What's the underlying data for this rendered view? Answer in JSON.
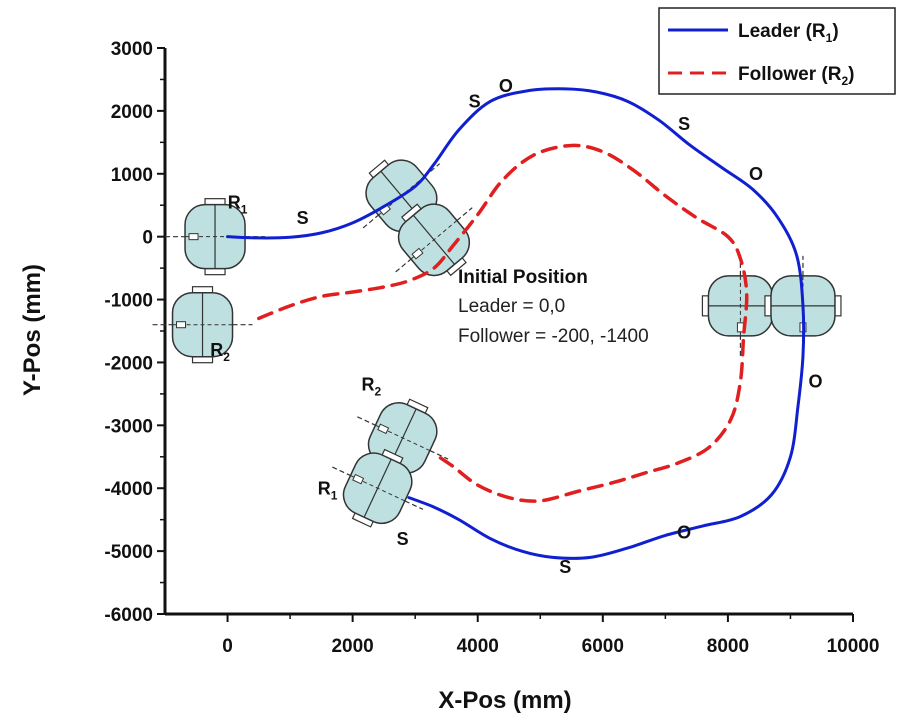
{
  "chart_data": {
    "type": "line",
    "xlabel": "X-Pos (mm)",
    "ylabel": "Y-Pos (mm)",
    "xlim": [
      -1000,
      10000
    ],
    "ylim": [
      -6000,
      3000
    ],
    "x_ticks": [
      0,
      2000,
      4000,
      6000,
      8000,
      10000
    ],
    "y_ticks": [
      3000,
      2000,
      1000,
      0,
      -1000,
      -2000,
      -3000,
      -4000,
      -5000,
      -6000
    ],
    "grid": false,
    "legend_position": "top-right",
    "series": [
      {
        "name": "Leader (R1)",
        "legend_main": "Leader (R",
        "legend_sub": "1",
        "legend_close": ")",
        "color": "#1020d0",
        "style": "solid",
        "points": [
          [
            0,
            0
          ],
          [
            500,
            -20
          ],
          [
            1000,
            -10
          ],
          [
            1500,
            60
          ],
          [
            2000,
            220
          ],
          [
            2500,
            480
          ],
          [
            3000,
            800
          ],
          [
            3300,
            1150
          ],
          [
            3700,
            1700
          ],
          [
            4200,
            2150
          ],
          [
            4800,
            2320
          ],
          [
            5400,
            2350
          ],
          [
            5900,
            2300
          ],
          [
            6400,
            2150
          ],
          [
            6900,
            1850
          ],
          [
            7400,
            1450
          ],
          [
            7900,
            1100
          ],
          [
            8400,
            750
          ],
          [
            8800,
            300
          ],
          [
            9100,
            -300
          ],
          [
            9200,
            -1100
          ],
          [
            9200,
            -1900
          ],
          [
            9120,
            -2700
          ],
          [
            9000,
            -3500
          ],
          [
            8700,
            -4100
          ],
          [
            8200,
            -4450
          ],
          [
            7600,
            -4600
          ],
          [
            7000,
            -4750
          ],
          [
            6400,
            -4950
          ],
          [
            5800,
            -5100
          ],
          [
            5200,
            -5100
          ],
          [
            4700,
            -5000
          ],
          [
            4200,
            -4800
          ],
          [
            3700,
            -4500
          ],
          [
            3300,
            -4300
          ],
          [
            2900,
            -4150
          ]
        ]
      },
      {
        "name": "Follower (R2)",
        "legend_main": "Follower (R",
        "legend_sub": "2",
        "legend_close": ")",
        "color": "#e02020",
        "style": "dashed",
        "points": [
          [
            500,
            -1300
          ],
          [
            1000,
            -1100
          ],
          [
            1500,
            -950
          ],
          [
            2000,
            -880
          ],
          [
            2500,
            -800
          ],
          [
            2900,
            -700
          ],
          [
            3300,
            -500
          ],
          [
            3600,
            -150
          ],
          [
            4000,
            350
          ],
          [
            4400,
            900
          ],
          [
            4900,
            1300
          ],
          [
            5500,
            1450
          ],
          [
            6000,
            1350
          ],
          [
            6500,
            1050
          ],
          [
            7000,
            650
          ],
          [
            7500,
            300
          ],
          [
            8000,
            0
          ],
          [
            8200,
            -350
          ],
          [
            8300,
            -900
          ],
          [
            8250,
            -1600
          ],
          [
            8200,
            -2300
          ],
          [
            8050,
            -2900
          ],
          [
            7700,
            -3350
          ],
          [
            7200,
            -3600
          ],
          [
            6700,
            -3750
          ],
          [
            6200,
            -3900
          ],
          [
            5600,
            -4050
          ],
          [
            5000,
            -4200
          ],
          [
            4500,
            -4150
          ],
          [
            4000,
            -3950
          ],
          [
            3600,
            -3650
          ],
          [
            3300,
            -3450
          ]
        ]
      }
    ],
    "annotations": [
      {
        "text": "S",
        "x": 1200,
        "y": 200
      },
      {
        "text": "S",
        "x": 3950,
        "y": 2050
      },
      {
        "text": "O",
        "x": 4450,
        "y": 2300
      },
      {
        "text": "S",
        "x": 7300,
        "y": 1700
      },
      {
        "text": "O",
        "x": 8450,
        "y": 900
      },
      {
        "text": "O",
        "x": 9400,
        "y": -2400
      },
      {
        "text": "O",
        "x": 7300,
        "y": -4800
      },
      {
        "text": "S",
        "x": 5400,
        "y": -5350
      },
      {
        "text": "S",
        "x": 2800,
        "y": -4900
      }
    ],
    "info_box": {
      "title": "Initial Position",
      "line1": "Leader = 0,0",
      "line2": "Follower = -200, -1400"
    },
    "robots": [
      {
        "label": "R",
        "sub": "1",
        "x": -200,
        "y": 0,
        "angle": 0,
        "label_dx": 360,
        "label_dy": 450
      },
      {
        "label": "R",
        "sub": "2",
        "x": -400,
        "y": -1400,
        "angle": 0,
        "label_dx": 280,
        "label_dy": -500
      },
      {
        "label": "",
        "sub": "",
        "x": 2780,
        "y": 650,
        "angle": -40,
        "label_dx": 0,
        "label_dy": 0
      },
      {
        "label": "",
        "sub": "",
        "x": 3300,
        "y": -50,
        "angle": -40,
        "label_dx": 0,
        "label_dy": 0
      },
      {
        "label": "",
        "sub": "",
        "x": 8200,
        "y": -1100,
        "angle": -90,
        "label_dx": 0,
        "label_dy": 0
      },
      {
        "label": "",
        "sub": "",
        "x": 9200,
        "y": -1100,
        "angle": -90,
        "label_dx": 0,
        "label_dy": 0
      },
      {
        "label": "R",
        "sub": "2",
        "x": 2800,
        "y": -3200,
        "angle": 25,
        "label_dx": -500,
        "label_dy": 750
      },
      {
        "label": "R",
        "sub": "1",
        "x": 2400,
        "y": -4000,
        "angle": 25,
        "label_dx": -800,
        "label_dy": -100
      }
    ]
  }
}
